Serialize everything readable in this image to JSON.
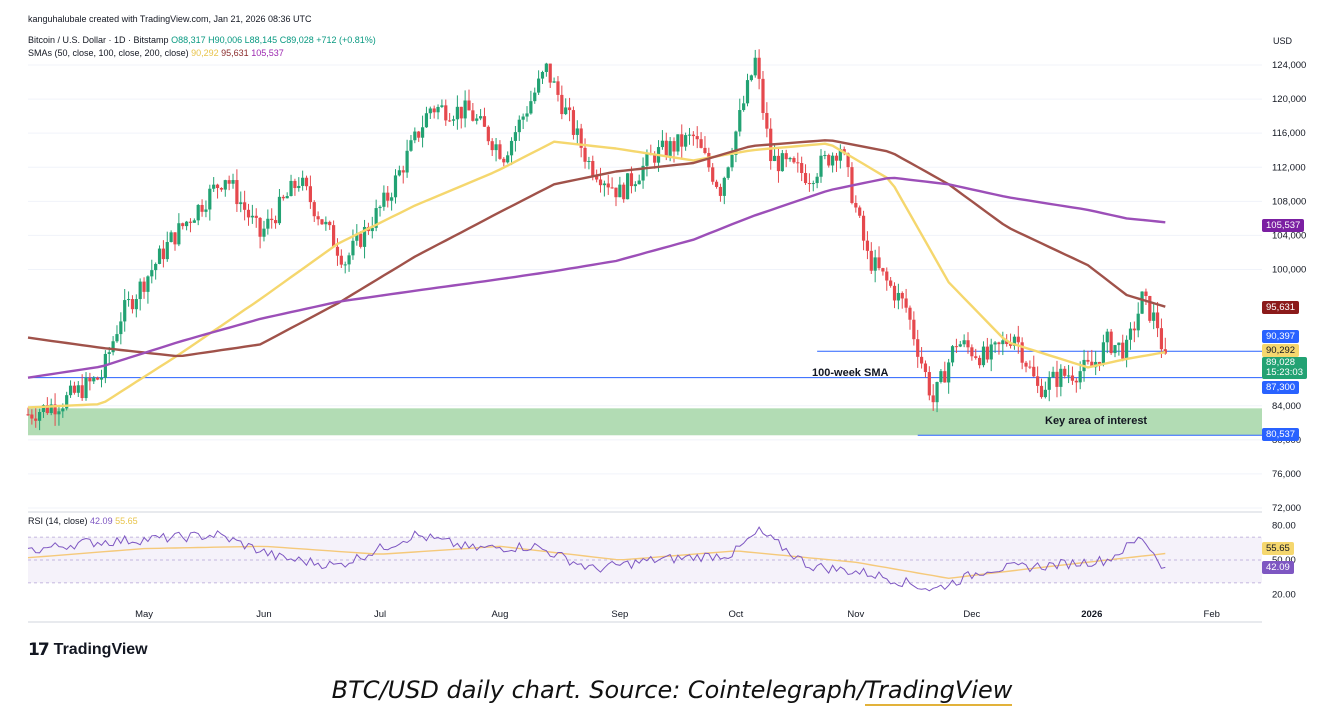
{
  "watermark": "kanguhalubale created with TradingView.com, Jan 21, 2026 08:36 UTC",
  "legend": {
    "symbol": "Bitcoin / U.S. Dollar · 1D · Bitstamp",
    "open": "O88,317",
    "high": "H90,006",
    "low": "L88,145",
    "close": "C89,028",
    "change": "+712 (+0.81%)",
    "sma_label": "SMAs (50, close, 100, close, 200, close)",
    "sma50_value": "90,292",
    "sma100_value": "95,631",
    "sma200_value": "105,537",
    "rsi_label": "RSI (14, close)",
    "rsi_value": "42.09",
    "rsi_ma_value": "55.65"
  },
  "currency": "USD",
  "colors": {
    "up": "#22a273",
    "down": "#e5484d",
    "sma50": "#f5d76e",
    "sma100": "#a0524a",
    "sma200": "#9c4fb8",
    "hline": "#2962ff",
    "zone": "#a5d6a7",
    "rsi": "#7e57c2",
    "rsi_ma": "#f5c97a"
  },
  "annotations": {
    "sma_100w": "100-week  SMA",
    "key_area": "Key area of interest"
  },
  "price_tags": {
    "sma200": "105,537",
    "sma100": "95,631",
    "level_upper": "90,397",
    "sma50": "90,292",
    "last_price": "89,028",
    "countdown": "15:23:03",
    "level_100w": "87,300",
    "level_lower": "80,537",
    "rsi_ma": "55.65",
    "rsi": "42.09"
  },
  "brand": "TradingView",
  "caption_pre": "BTC/USD daily chart. Source: Cointelegraph/",
  "caption_link": "TradingView",
  "chart_data": {
    "type": "line",
    "title": "Bitcoin / U.S. Dollar · 1D · Bitstamp",
    "y_ticks": [
      124000,
      120000,
      116000,
      112000,
      108000,
      104000,
      100000,
      84000,
      80000,
      76000,
      72000
    ],
    "ylim": [
      72000,
      126000
    ],
    "x_ticks": [
      "May",
      "Jun",
      "Jul",
      "Aug",
      "Sep",
      "Oct",
      "Nov",
      "Dec",
      "2026",
      "Feb"
    ],
    "rsi_ticks": [
      80,
      50,
      20
    ],
    "rsi_ticks_labels": [
      "80.00",
      "50.00",
      "20.00"
    ],
    "rsi_ylim": [
      15,
      85
    ],
    "levels": {
      "upper": 90397,
      "sma_100w": 87300,
      "lower": 80537,
      "zone": [
        80537,
        83700
      ]
    },
    "series": [
      {
        "name": "SMA 50",
        "color": "#f5d76e",
        "x": [
          "2025-04-01",
          "2025-04-20",
          "2025-05-10",
          "2025-05-31",
          "2025-06-20",
          "2025-07-10",
          "2025-07-31",
          "2025-08-15",
          "2025-08-31",
          "2025-09-20",
          "2025-10-05",
          "2025-10-25",
          "2025-11-10",
          "2025-11-25",
          "2025-12-10",
          "2025-12-31",
          "2026-01-10",
          "2026-01-20"
        ],
        "values": [
          83800,
          84200,
          90000,
          96500,
          103000,
          107500,
          111500,
          115000,
          114200,
          112800,
          114000,
          114800,
          110500,
          98500,
          91500,
          88500,
          89500,
          90292
        ]
      },
      {
        "name": "SMA 100",
        "color": "#a0524a",
        "x": [
          "2025-04-01",
          "2025-04-20",
          "2025-05-10",
          "2025-05-31",
          "2025-06-20",
          "2025-07-10",
          "2025-07-31",
          "2025-08-15",
          "2025-08-31",
          "2025-09-20",
          "2025-10-05",
          "2025-10-25",
          "2025-11-10",
          "2025-11-25",
          "2025-12-10",
          "2025-12-31",
          "2026-01-10",
          "2026-01-20"
        ],
        "values": [
          92000,
          90800,
          89800,
          91200,
          96000,
          101500,
          106500,
          110000,
          111500,
          112500,
          114500,
          115200,
          113800,
          110000,
          105000,
          100500,
          97000,
          95631
        ]
      },
      {
        "name": "SMA 200",
        "color": "#9c4fb8",
        "x": [
          "2025-04-01",
          "2025-04-20",
          "2025-05-10",
          "2025-05-31",
          "2025-06-20",
          "2025-07-10",
          "2025-07-31",
          "2025-08-15",
          "2025-08-31",
          "2025-09-20",
          "2025-10-05",
          "2025-10-25",
          "2025-11-10",
          "2025-11-25",
          "2025-12-10",
          "2025-12-31",
          "2026-01-10",
          "2026-01-20"
        ],
        "values": [
          87300,
          88600,
          91500,
          94200,
          96200,
          97500,
          98800,
          99800,
          101000,
          103500,
          106200,
          109300,
          110800,
          110000,
          108500,
          107000,
          106000,
          105537
        ]
      },
      {
        "name": "Close",
        "color": "#22a273",
        "x": [
          "2025-04-01",
          "2025-04-10",
          "2025-04-20",
          "2025-04-25",
          "2025-05-08",
          "2025-05-22",
          "2025-05-31",
          "2025-06-10",
          "2025-06-22",
          "2025-07-03",
          "2025-07-14",
          "2025-07-24",
          "2025-08-02",
          "2025-08-13",
          "2025-08-24",
          "2025-09-01",
          "2025-09-10",
          "2025-09-20",
          "2025-09-27",
          "2025-10-06",
          "2025-10-10",
          "2025-10-20",
          "2025-10-28",
          "2025-11-04",
          "2025-11-14",
          "2025-11-21",
          "2025-11-27",
          "2025-12-05",
          "2025-12-12",
          "2025-12-18",
          "2025-12-24",
          "2026-01-01",
          "2026-01-05",
          "2026-01-10",
          "2026-01-14",
          "2026-01-18",
          "2026-01-20"
        ],
        "values": [
          83000,
          84500,
          87500,
          94500,
          103500,
          111000,
          104000,
          110500,
          101000,
          108500,
          119000,
          118500,
          113500,
          123500,
          112500,
          109000,
          113500,
          115500,
          109500,
          124500,
          113000,
          111000,
          114500,
          101500,
          95500,
          84500,
          91500,
          89500,
          92500,
          86000,
          87500,
          88500,
          91500,
          90500,
          96500,
          93500,
          89028
        ]
      },
      {
        "name": "RSI",
        "color": "#7e57c2",
        "x": [
          "2025-04-01",
          "2025-04-15",
          "2025-05-01",
          "2025-05-20",
          "2025-06-05",
          "2025-06-20",
          "2025-07-10",
          "2025-07-25",
          "2025-08-10",
          "2025-08-25",
          "2025-09-10",
          "2025-09-30",
          "2025-10-07",
          "2025-10-20",
          "2025-11-05",
          "2025-11-21",
          "2025-12-05",
          "2025-12-20",
          "2026-01-05",
          "2026-01-14",
          "2026-01-20"
        ],
        "values": [
          58,
          65,
          68,
          72,
          52,
          45,
          72,
          60,
          62,
          42,
          50,
          55,
          75,
          45,
          38,
          24,
          42,
          45,
          50,
          70,
          42
        ]
      },
      {
        "name": "RSI MA",
        "color": "#f5c97a",
        "x": [
          "2025-04-01",
          "2025-05-01",
          "2025-06-01",
          "2025-07-01",
          "2025-08-01",
          "2025-09-01",
          "2025-10-01",
          "2025-11-01",
          "2025-11-25",
          "2025-12-15",
          "2026-01-05",
          "2026-01-20"
        ],
        "values": [
          52,
          60,
          62,
          55,
          62,
          50,
          58,
          48,
          34,
          42,
          50,
          55.65
        ]
      }
    ]
  }
}
